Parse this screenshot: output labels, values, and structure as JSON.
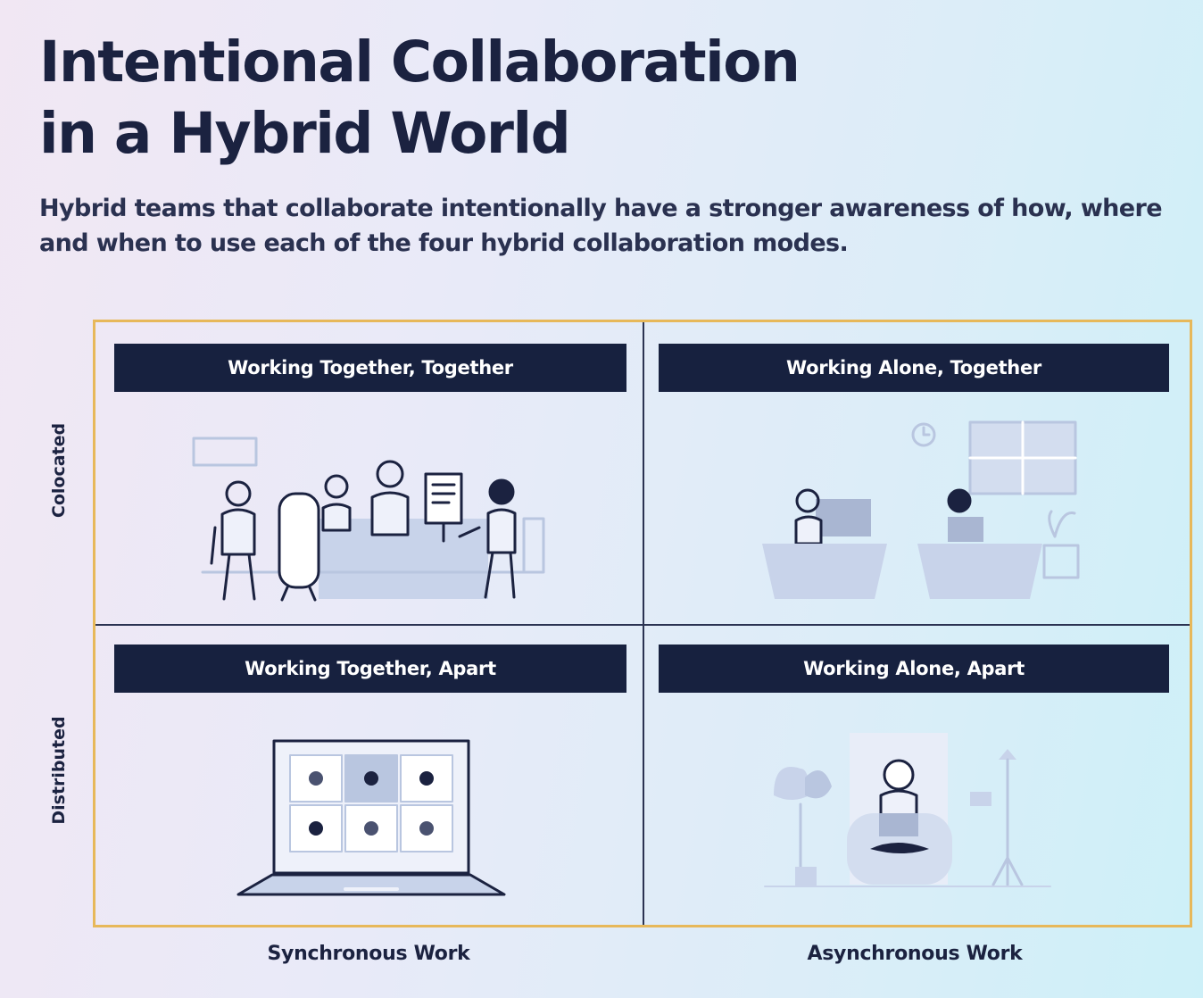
{
  "title_line1": "Intentional Collaboration",
  "title_line2": "in a Hybrid World",
  "subtitle": "Hybrid teams that collaborate intentionally have a stronger awareness of how, where and when to use each of the four hybrid collaboration modes.",
  "matrix": {
    "rows": [
      "Colocated",
      "Distributed"
    ],
    "columns": [
      "Synchronous Work",
      "Asynchronous Work"
    ],
    "quadrants": {
      "top_left": "Working Together, Together",
      "top_right": "Working Alone, Together",
      "bottom_left": "Working Together, Apart",
      "bottom_right": "Working Alone, Apart"
    }
  },
  "colors": {
    "navy": "#17213f",
    "border": "#e7b85a",
    "illustration": "#b9c6e0"
  }
}
